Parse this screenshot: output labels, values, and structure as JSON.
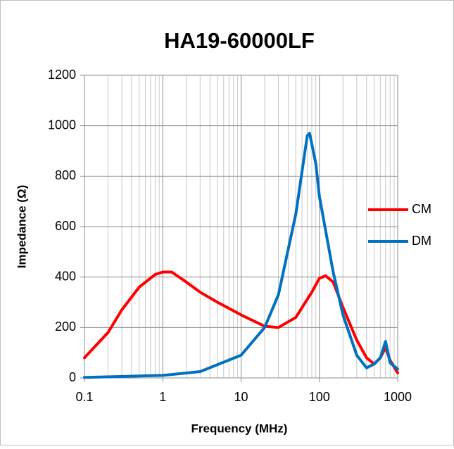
{
  "chart_data": {
    "type": "line",
    "title": "HA19-60000LF",
    "xlabel": "Frequency (MHz)",
    "ylabel": "Impedance (Ω)",
    "xscale": "log",
    "xlim": [
      0.1,
      1000
    ],
    "xticks": [
      0.1,
      1,
      10,
      100,
      1000
    ],
    "ylim": [
      0,
      1200
    ],
    "yticks": [
      0,
      200,
      400,
      600,
      800,
      1000,
      1200
    ],
    "grid": true,
    "minor_grid": true,
    "legend": "right",
    "series": [
      {
        "name": "CM",
        "color": "#ff0000",
        "x": [
          0.1,
          0.2,
          0.3,
          0.5,
          0.8,
          1,
          1.3,
          2,
          3,
          5,
          10,
          20,
          30,
          50,
          80,
          100,
          120,
          150,
          200,
          300,
          400,
          500,
          600,
          700,
          800,
          1000
        ],
        "values": [
          80,
          180,
          270,
          360,
          410,
          420,
          420,
          380,
          340,
          300,
          250,
          205,
          200,
          240,
          340,
          395,
          405,
          380,
          280,
          150,
          80,
          55,
          80,
          120,
          70,
          20
        ]
      },
      {
        "name": "DM",
        "color": "#0070c0",
        "x": [
          0.1,
          1,
          3,
          10,
          20,
          30,
          50,
          70,
          75,
          90,
          100,
          150,
          200,
          300,
          400,
          500,
          600,
          700,
          800,
          1000
        ],
        "values": [
          2,
          10,
          25,
          90,
          200,
          330,
          650,
          960,
          970,
          850,
          720,
          420,
          250,
          90,
          40,
          55,
          80,
          145,
          60,
          35
        ]
      }
    ]
  }
}
